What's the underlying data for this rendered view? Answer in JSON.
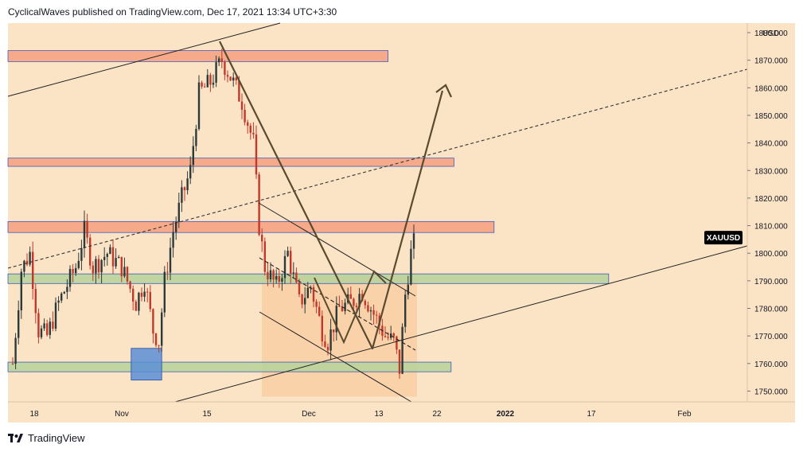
{
  "header": {
    "publisher_line": "CyclicalWaves published on TradingView.com, Dec 17, 2021 13:34 UTC+3:30"
  },
  "footer": {
    "brand": "TradingView",
    "logo_icon": "tradingview-logo-icon"
  },
  "colors": {
    "background": "#ffffff",
    "chart_bg": "#fbe3c6",
    "resistance_zone": "#f4a07f",
    "support_zone": "#b9d39a",
    "blue_box": "#5b8fd6",
    "candle_up": "#2d3a3a",
    "candle_down": "#c0392b",
    "projection": "#5a4a30",
    "price_label_bg": "#000000"
  },
  "chart_data": {
    "type": "candlestick",
    "symbol": "XAUUSD",
    "currency": "USD",
    "last_price_label": "XAUUSD",
    "x_ticks": [
      "18",
      "Nov",
      "15",
      "Dec",
      "13",
      "22",
      "2022",
      "17",
      "Feb"
    ],
    "y_ticks": [
      "1880.000",
      "1870.000",
      "1860.000",
      "1850.000",
      "1840.000",
      "1830.000",
      "1820.000",
      "1810.000",
      "1800.000",
      "1790.000",
      "1780.000",
      "1770.000",
      "1760.000",
      "1750.000"
    ],
    "y_range": [
      1746,
      1884
    ],
    "grid": false,
    "price_path": [
      {
        "d": 0,
        "p": 1760
      },
      {
        "d": 3,
        "p": 1794
      },
      {
        "d": 6,
        "p": 1800
      },
      {
        "d": 9,
        "p": 1772
      },
      {
        "d": 12,
        "p": 1770
      },
      {
        "d": 16,
        "p": 1782
      },
      {
        "d": 22,
        "p": 1795
      },
      {
        "d": 25,
        "p": 1808
      },
      {
        "d": 28,
        "p": 1795
      },
      {
        "d": 33,
        "p": 1800
      },
      {
        "d": 38,
        "p": 1795
      },
      {
        "d": 43,
        "p": 1782
      },
      {
        "d": 46,
        "p": 1790
      },
      {
        "d": 49,
        "p": 1772
      },
      {
        "d": 51,
        "p": 1768
      },
      {
        "d": 53,
        "p": 1790
      },
      {
        "d": 56,
        "p": 1808
      },
      {
        "d": 59,
        "p": 1820
      },
      {
        "d": 62,
        "p": 1830
      },
      {
        "d": 65,
        "p": 1858
      },
      {
        "d": 69,
        "p": 1862
      },
      {
        "d": 73,
        "p": 1870
      },
      {
        "d": 76,
        "p": 1864
      },
      {
        "d": 80,
        "p": 1855
      },
      {
        "d": 84,
        "p": 1840
      },
      {
        "d": 86,
        "p": 1810
      },
      {
        "d": 88,
        "p": 1795
      },
      {
        "d": 92,
        "p": 1788
      },
      {
        "d": 96,
        "p": 1800
      },
      {
        "d": 100,
        "p": 1782
      },
      {
        "d": 104,
        "p": 1788
      },
      {
        "d": 108,
        "p": 1772
      },
      {
        "d": 110,
        "p": 1768
      },
      {
        "d": 114,
        "p": 1780
      },
      {
        "d": 118,
        "p": 1782
      },
      {
        "d": 122,
        "p": 1786
      },
      {
        "d": 126,
        "p": 1778
      },
      {
        "d": 130,
        "p": 1770
      },
      {
        "d": 133,
        "p": 1768
      },
      {
        "d": 135,
        "p": 1758
      },
      {
        "d": 137,
        "p": 1785
      },
      {
        "d": 139,
        "p": 1800
      },
      {
        "d": 141,
        "p": 1807
      }
    ],
    "zones": [
      {
        "kind": "resistance",
        "top": 1873.5,
        "bottom": 1869.5,
        "x0": 0,
        "x1": 131
      },
      {
        "kind": "resistance",
        "top": 1834.5,
        "bottom": 1831.5,
        "x0": 0,
        "x1": 154
      },
      {
        "kind": "resistance",
        "top": 1811.5,
        "bottom": 1807.5,
        "x0": 0,
        "x1": 168
      },
      {
        "kind": "support",
        "top": 1792.5,
        "bottom": 1789,
        "x0": 0,
        "x1": 208
      },
      {
        "kind": "support",
        "top": 1760.5,
        "bottom": 1757,
        "x0": 0,
        "x1": 153
      },
      {
        "kind": "box",
        "top": 1765.5,
        "bottom": 1754,
        "x0": 43,
        "x1": 52
      }
    ]
  }
}
